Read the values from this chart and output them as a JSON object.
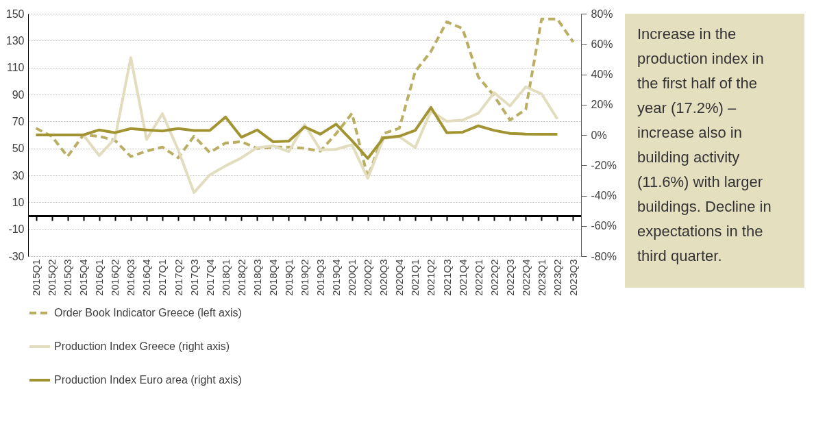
{
  "chart_data": {
    "type": "line",
    "categories": [
      "2015Q1",
      "2015Q2",
      "2015Q3",
      "2015Q4",
      "2016Q1",
      "2016Q2",
      "2016Q3",
      "2016Q4",
      "2017Q1",
      "2017Q2",
      "2017Q3",
      "2017Q4",
      "2018Q1",
      "2018Q2",
      "2018Q3",
      "2018Q4",
      "2019Q1",
      "2019Q2",
      "2019Q3",
      "2019Q4",
      "2020Q1",
      "2020Q2",
      "2020Q3",
      "2020Q4",
      "2021Q1",
      "2021Q2",
      "2021Q3",
      "2021Q4",
      "2022Q1",
      "2022Q2",
      "2022Q3",
      "2022Q4",
      "2023Q1",
      "2023Q2",
      "2023Q3"
    ],
    "series": [
      {
        "name": "Order Book Indicator Greece (left axis)",
        "color": "#b9ae62",
        "line_style": "dashed",
        "values": [
          65,
          59,
          44,
          60,
          59,
          56,
          44,
          48,
          51,
          43,
          59,
          47,
          54,
          55,
          50,
          51,
          51,
          50,
          48,
          61,
          76,
          28.5,
          61,
          65,
          107,
          122,
          144,
          139,
          103,
          89,
          71,
          79,
          146,
          146,
          129
        ]
      },
      {
        "name": "Production Index Greece (right axis)",
        "color": "#e2ddbe",
        "axis": "y2",
        "line_style": "solid",
        "values": [
          0,
          0,
          0,
          0,
          -13.6,
          -2.3,
          51,
          -3,
          14,
          -9.8,
          -38,
          -26.4,
          -20.4,
          -15.1,
          -8.3,
          -7.2,
          -11,
          6.8,
          -9.8,
          -9.5,
          -6.5,
          -28.6,
          -2.3,
          -1.2,
          -8.3,
          15.8,
          9,
          9.8,
          14.3,
          27.9,
          19.1,
          31.7,
          27.1,
          10.5,
          null
        ]
      },
      {
        "name": "Production Index Euro area (right axis)",
        "color": "#a39433",
        "axis": "y2",
        "line_style": "solid",
        "values": [
          0,
          0,
          0,
          0,
          3.3,
          1.5,
          4.2,
          3.3,
          2.6,
          4.2,
          2.9,
          2.9,
          11.8,
          -1.5,
          3.3,
          -4.5,
          -4.1,
          5.3,
          0.5,
          7.1,
          -3.8,
          -15.5,
          -1.9,
          -0.8,
          3,
          18.1,
          1.5,
          1.8,
          6,
          3,
          1,
          0.6,
          0.5,
          0.4,
          null
        ]
      }
    ],
    "ylim": [
      -30,
      150
    ],
    "yticks": [
      -30,
      -10,
      10,
      30,
      50,
      70,
      90,
      110,
      130,
      150
    ],
    "y2lim": [
      -80,
      80
    ],
    "y2ticks": [
      {
        "value": -80,
        "label": "-80%"
      },
      {
        "value": -60,
        "label": "-60%"
      },
      {
        "value": -40,
        "label": "-40%"
      },
      {
        "value": -20,
        "label": "-20%"
      },
      {
        "value": 0,
        "label": "0%"
      },
      {
        "value": 20,
        "label": "20%"
      },
      {
        "value": 40,
        "label": "40%"
      },
      {
        "value": 60,
        "label": "60%"
      },
      {
        "value": 80,
        "label": "80%"
      }
    ],
    "grid": "y",
    "legend": "bottom",
    "marker": "none",
    "annotations": [
      "Increase in the production index in the first half of the year (17.2%) – increase also in building activity (11.6%) with larger buildings. Decline in expectations in the third quarter."
    ]
  }
}
